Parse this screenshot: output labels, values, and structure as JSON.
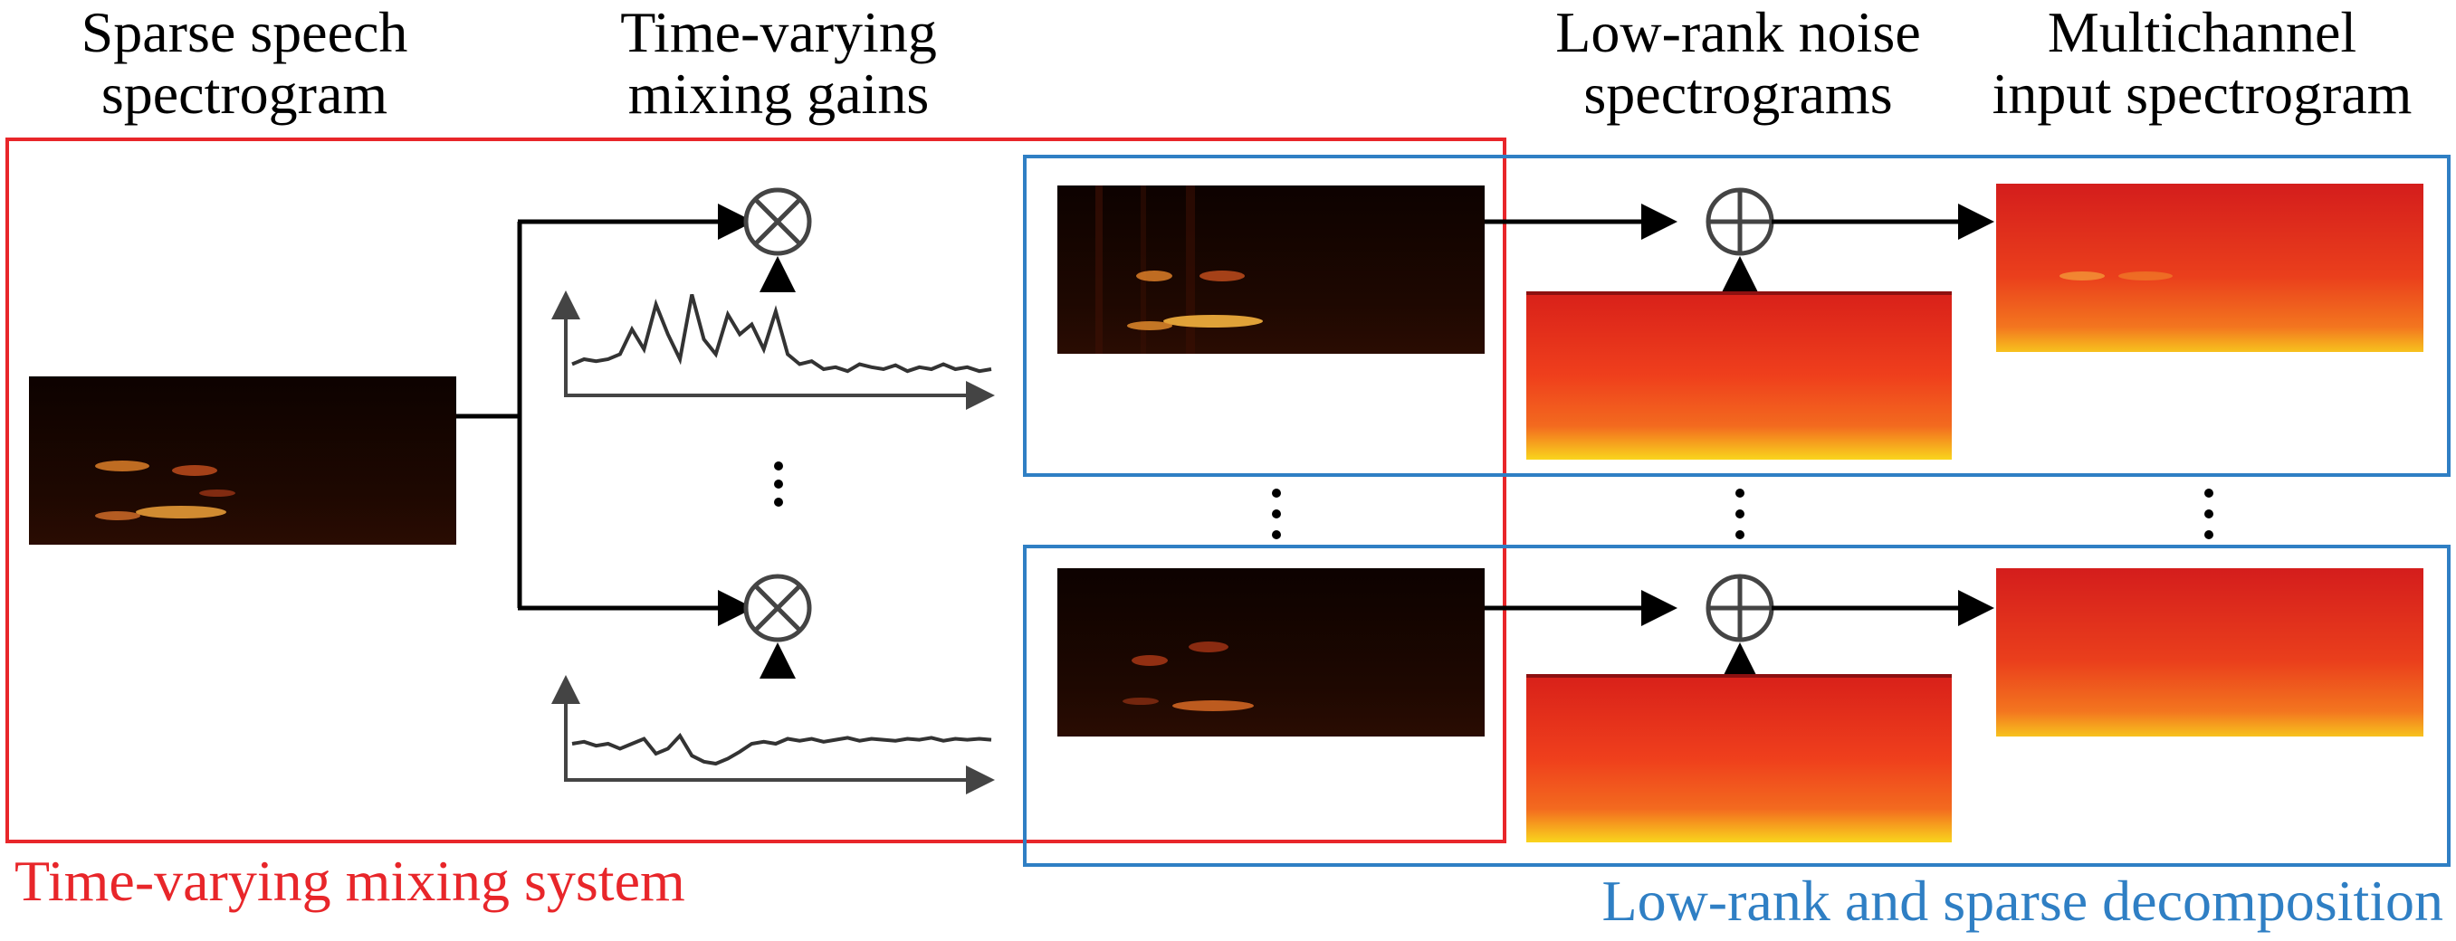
{
  "headings": {
    "speech_line1": "Sparse speech",
    "speech_line2": "spectrogram",
    "gains_line1": "Time-varying",
    "gains_line2": "mixing gains",
    "noise_line1": "Low-rank noise",
    "noise_line2": "spectrograms",
    "input_line1": "Multichannel",
    "input_line2": "input spectrogram"
  },
  "captions": {
    "mixing_system": "Time-varying mixing system",
    "decomposition": "Low-rank and sparse decomposition"
  },
  "operators": {
    "multiply": "⊗",
    "add": "⊕"
  },
  "colors": {
    "mixing_system": "#e8262a",
    "decomposition": "#2f7fc4",
    "arrows": "#000000",
    "gain_curve": "#333333",
    "dark_spectrogram": "#1a0600",
    "noise_spectrogram": "#ef3d1b",
    "noise_band": "#f9d21c"
  },
  "gain_curves": [
    [
      0.25,
      0.3,
      0.28,
      0.3,
      0.35,
      0.6,
      0.4,
      0.85,
      0.55,
      0.3,
      0.95,
      0.5,
      0.35,
      0.75,
      0.55,
      0.65,
      0.4,
      0.78,
      0.35,
      0.25,
      0.28,
      0.2,
      0.22,
      0.18,
      0.25,
      0.22,
      0.2,
      0.24,
      0.18,
      0.22,
      0.2,
      0.25,
      0.2,
      0.22,
      0.18,
      0.2
    ],
    [
      0.3,
      0.32,
      0.28,
      0.3,
      0.25,
      0.3,
      0.35,
      0.2,
      0.25,
      0.38,
      0.18,
      0.12,
      0.1,
      0.15,
      0.22,
      0.3,
      0.32,
      0.3,
      0.35,
      0.33,
      0.35,
      0.32,
      0.34,
      0.36,
      0.33,
      0.35,
      0.34,
      0.33,
      0.35,
      0.34,
      0.36,
      0.33,
      0.35,
      0.34,
      0.35,
      0.34
    ]
  ]
}
